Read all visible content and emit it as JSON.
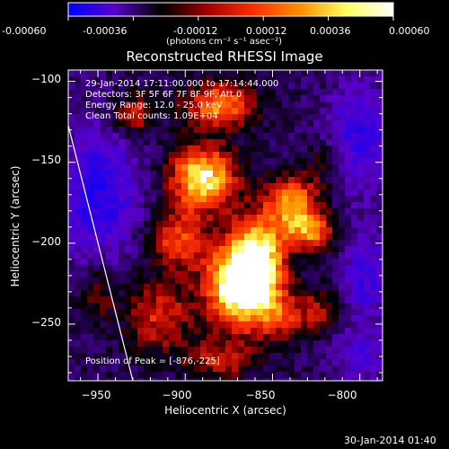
{
  "colorbar": {
    "tick_labels": [
      "-0.00060",
      "-0.00036",
      "-0.00012",
      "0.00012",
      "0.00036",
      "0.00060"
    ],
    "units_label": "(photons cm⁻² s⁻¹ asec⁻²)",
    "colors": [
      "#0000ff",
      "#5a00c8",
      "#000000",
      "#a00000",
      "#ff3000",
      "#ff9000",
      "#ffff60",
      "#ffffff"
    ]
  },
  "overlay": {
    "line1": "29-Jan-2014 17:11:00.000 to 17:14:44.000",
    "line2": "Detectors: 3F 5F 6F 7F 8F 9F, Att 0",
    "line3": "Energy Range: 12.0 - 25.0 keV",
    "line4": "Clean     Total counts: 1.09E+04",
    "peak": "Position of Peak = [-876,-225]"
  },
  "footer": {
    "timestamp": "30-Jan-2014 01:40"
  },
  "chart_data": {
    "type": "heatmap",
    "title": "Reconstructed RHESSI Image",
    "xlabel": "Heliocentric X (arcsec)",
    "ylabel": "Heliocentric Y (arcsec)",
    "xlim": [
      -967,
      -787
    ],
    "ylim": [
      -285,
      -93
    ],
    "x_ticks": [
      -950,
      -900,
      -850,
      -800
    ],
    "y_ticks": [
      -100,
      -150,
      -200,
      -250
    ],
    "x_tick_labels": [
      "−950",
      "−900",
      "−850",
      "−800"
    ],
    "y_tick_labels": [
      "−100",
      "−150",
      "−200",
      "−250"
    ],
    "colorbar_range": [
      -0.0006,
      0.0006
    ],
    "peak": {
      "x": -876,
      "y": -225
    },
    "limb_line": [
      [
        -968,
        -123
      ],
      [
        -930,
        -285
      ]
    ],
    "sources": [
      {
        "x": -870,
        "y": -225,
        "w": 0.00074,
        "sx": 14,
        "sy": 18
      },
      {
        "x": -890,
        "y": -160,
        "w": 0.0007,
        "sx": 13,
        "sy": 14
      },
      {
        "x": -880,
        "y": -115,
        "w": 0.00052,
        "sx": 14,
        "sy": 10
      },
      {
        "x": -858,
        "y": -210,
        "w": 0.00058,
        "sx": 11,
        "sy": 20
      },
      {
        "x": -838,
        "y": -175,
        "w": 0.0005,
        "sx": 11,
        "sy": 12
      },
      {
        "x": -828,
        "y": -193,
        "w": 0.00044,
        "sx": 10,
        "sy": 8
      },
      {
        "x": -905,
        "y": -198,
        "w": 0.0004,
        "sx": 11,
        "sy": 12
      },
      {
        "x": -930,
        "y": -120,
        "w": 0.00034,
        "sx": 9,
        "sy": 9
      },
      {
        "x": -915,
        "y": -245,
        "w": 0.00034,
        "sx": 13,
        "sy": 16
      },
      {
        "x": -880,
        "y": -272,
        "w": 0.0003,
        "sx": 14,
        "sy": 9
      },
      {
        "x": -845,
        "y": -245,
        "w": 0.0003,
        "sx": 12,
        "sy": 10
      },
      {
        "x": -950,
        "y": -230,
        "w": 0.0002,
        "sx": 8,
        "sy": 14
      },
      {
        "x": -822,
        "y": -240,
        "w": 0.00022,
        "sx": 8,
        "sy": 10
      },
      {
        "x": -820,
        "y": -150,
        "w": 0.00018,
        "sx": 7,
        "sy": 10
      }
    ],
    "negative_regions": [
      {
        "x": -950,
        "y": -170,
        "w": -0.00036,
        "sx": 16,
        "sy": 30
      },
      {
        "x": -800,
        "y": -135,
        "w": -0.0003,
        "sx": 14,
        "sy": 24
      },
      {
        "x": -797,
        "y": -220,
        "w": -0.00026,
        "sx": 10,
        "sy": 20
      },
      {
        "x": -800,
        "y": -270,
        "w": -0.00022,
        "sx": 10,
        "sy": 12
      }
    ]
  }
}
